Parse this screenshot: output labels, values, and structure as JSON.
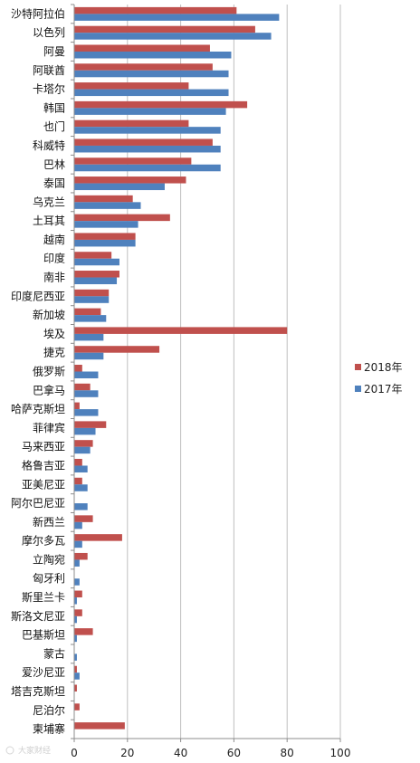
{
  "chart_data": {
    "type": "bar",
    "orientation": "horizontal",
    "categories": [
      "沙特阿拉伯",
      "以色列",
      "阿曼",
      "阿联酋",
      "卡塔尔",
      "韩国",
      "也门",
      "科威特",
      "巴林",
      "泰国",
      "乌克兰",
      "土耳其",
      "越南",
      "印度",
      "南非",
      "印度尼西亚",
      "新加坡",
      "埃及",
      "捷克",
      "俄罗斯",
      "巴拿马",
      "哈萨克斯坦",
      "菲律宾",
      "马来西亚",
      "格鲁吉亚",
      "亚美尼亚",
      "阿尔巴尼亚",
      "新西兰",
      "摩尔多瓦",
      "立陶宛",
      "匈牙利",
      "斯里兰卡",
      "斯洛文尼亚",
      "巴基斯坦",
      "蒙古",
      "爱沙尼亚",
      "塔吉克斯坦",
      "尼泊尔",
      "柬埔寨"
    ],
    "series": [
      {
        "name": "2018年",
        "color": "#c0504d",
        "values": [
          61,
          68,
          51,
          52,
          43,
          65,
          43,
          52,
          44,
          42,
          22,
          36,
          23,
          14,
          17,
          13,
          10,
          80,
          32,
          3,
          6,
          2,
          12,
          7,
          3,
          3,
          0,
          7,
          18,
          5,
          0,
          3,
          3,
          7,
          0,
          1,
          1,
          2,
          19
        ]
      },
      {
        "name": "2017年",
        "color": "#4f81bd",
        "values": [
          77,
          74,
          59,
          58,
          58,
          57,
          55,
          55,
          55,
          34,
          25,
          24,
          23,
          17,
          16,
          13,
          12,
          11,
          11,
          9,
          9,
          9,
          8,
          6,
          5,
          5,
          5,
          3,
          3,
          2,
          2,
          1,
          1,
          1,
          1,
          2,
          0,
          0,
          0
        ]
      }
    ],
    "x_ticks": [
      "0",
      "20",
      "40",
      "60",
      "80",
      "100"
    ],
    "xlim": [
      0,
      100
    ],
    "title": "",
    "xlabel": "",
    "ylabel": "",
    "grid": "vertical gridlines",
    "legend_position": "right"
  },
  "watermark": "大家财经"
}
